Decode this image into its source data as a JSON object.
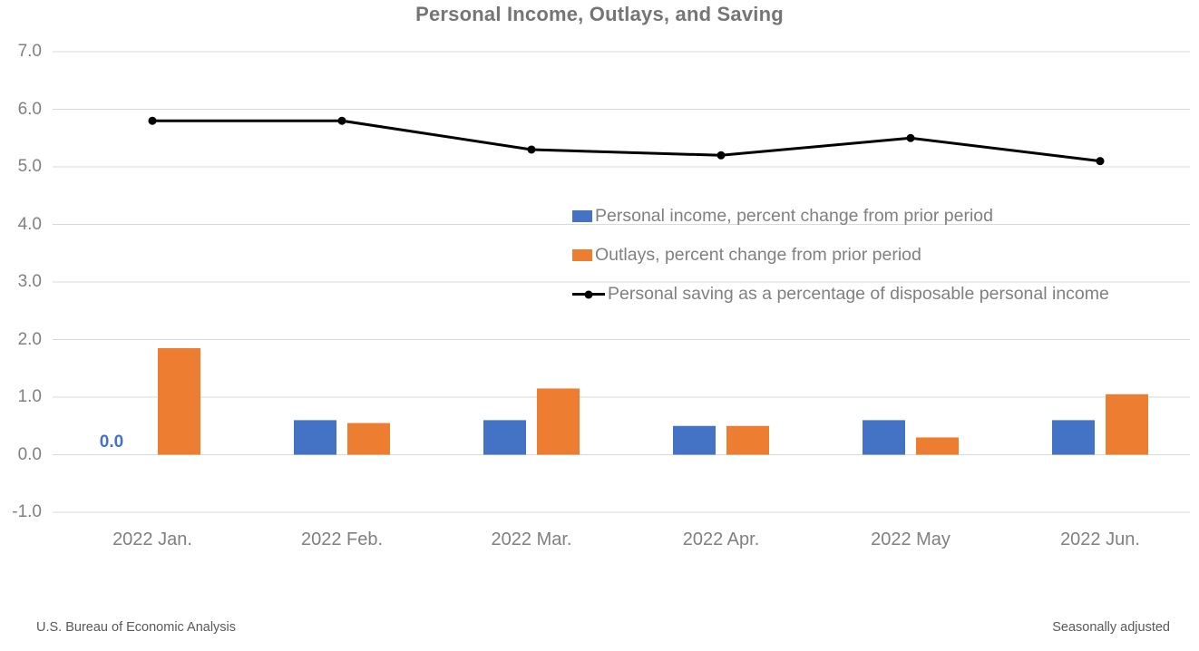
{
  "chart_data": {
    "type": "combo",
    "title": "Personal Income, Outlays, and Saving",
    "categories": [
      "2022 Jan.",
      "2022 Feb.",
      "2022 Mar.",
      "2022 Apr.",
      "2022 May",
      "2022 Jun."
    ],
    "series": [
      {
        "key": "income",
        "name": "Personal income, percent change from prior period",
        "type": "bar",
        "color": "#4472C4",
        "values": [
          0.0,
          0.6,
          0.6,
          0.5,
          0.6,
          0.6
        ]
      },
      {
        "key": "outlays",
        "name": "Outlays, percent change from prior period",
        "type": "bar",
        "color": "#ED7D31",
        "values": [
          1.85,
          0.55,
          1.15,
          0.5,
          0.3,
          1.05
        ]
      },
      {
        "key": "saving",
        "name": "Personal saving as a percentage of disposable personal income",
        "type": "line",
        "color": "#000000",
        "values": [
          5.8,
          5.8,
          5.3,
          5.2,
          5.5,
          5.1
        ]
      }
    ],
    "ylim": [
      -1.0,
      7.0
    ],
    "yticks": [
      7.0,
      6.0,
      5.0,
      4.0,
      3.0,
      2.0,
      1.0,
      0.0,
      -1.0
    ],
    "grid": true,
    "legend_position": "inside-center-right",
    "data_labels": [
      {
        "series_index": 0,
        "category_index": 0,
        "text": "0.0"
      }
    ]
  },
  "colors": {
    "gridline": "#D9D9D9",
    "axis_text": "#808080",
    "title_text": "#757575",
    "footer_text": "#595959",
    "background": "#FFFFFF"
  },
  "footer": {
    "left": "U.S. Bureau of Economic Analysis",
    "right": "Seasonally adjusted"
  }
}
